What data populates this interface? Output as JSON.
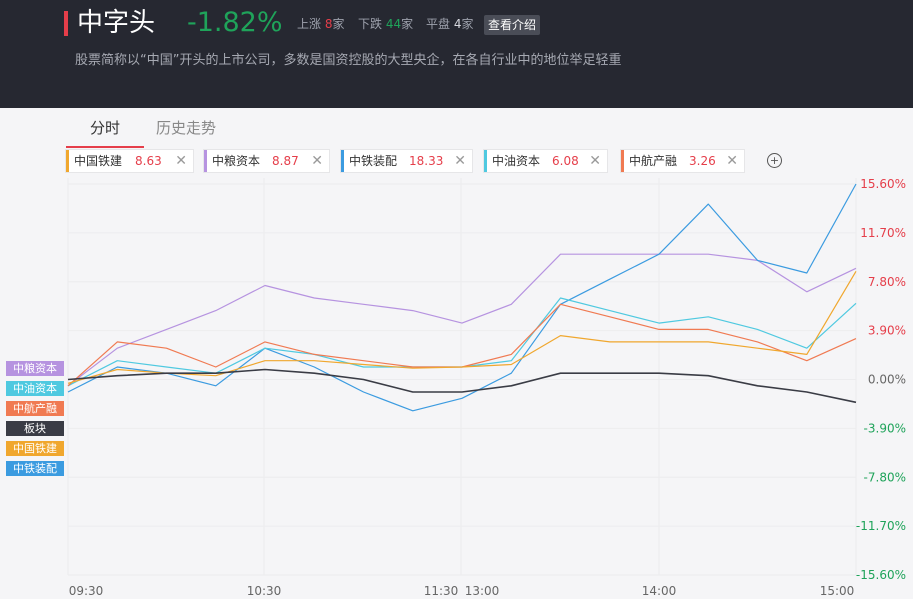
{
  "header": {
    "sector_name": "中字头",
    "sector_change": "-1.82%",
    "up_label": "上涨",
    "up_count": "8",
    "down_label": "下跌",
    "down_count": "44",
    "flat_label": "平盘",
    "flat_count": "4",
    "unit": "家",
    "intro_button": "查看介绍",
    "description": "股票简称以“中国”开头的上市公司，多数是国资控股的大型央企，在各自行业中的地位举足轻重"
  },
  "tabs": [
    {
      "label": "分时",
      "active": true
    },
    {
      "label": "历史走势",
      "active": false
    }
  ],
  "stock_chips": [
    {
      "name": "中国铁建",
      "value": "8.63",
      "color": "#f0a72e"
    },
    {
      "name": "中粮资本",
      "value": "8.87",
      "color": "#b693e0"
    },
    {
      "name": "中铁装配",
      "value": "18.33",
      "color": "#3b9be0"
    },
    {
      "name": "中油资本",
      "value": "6.08",
      "color": "#4fc9e0"
    },
    {
      "name": "中航产融",
      "value": "3.26",
      "color": "#f07a52"
    }
  ],
  "chip_close": "✕",
  "add_button": "+",
  "legend_tags": [
    {
      "label": "中粮资本",
      "color": "#b693e0"
    },
    {
      "label": "中油资本",
      "color": "#4fc9e0"
    },
    {
      "label": "中航产融",
      "color": "#f07a52"
    },
    {
      "label": "板块",
      "color": "#3a3c45"
    },
    {
      "label": "中国铁建",
      "color": "#f0a72e"
    },
    {
      "label": "中铁装配",
      "color": "#3b9be0"
    }
  ],
  "chart_data": {
    "type": "line",
    "x_ticks": [
      "09:30",
      "10:30",
      "11:30",
      "13:00",
      "14:00",
      "15:00"
    ],
    "y_ticks": [
      "15.60%",
      "11.70%",
      "7.80%",
      "3.90%",
      "0.00%",
      "-3.90%",
      "-7.80%",
      "-11.70%",
      "-15.60%"
    ],
    "ylim": [
      -15.6,
      15.6
    ],
    "x": [
      0,
      15,
      30,
      45,
      60,
      75,
      90,
      105,
      120,
      135,
      150,
      165,
      180,
      195,
      210,
      225,
      240
    ],
    "series": [
      {
        "name": "中粮资本",
        "color": "#b693e0",
        "values": [
          -0.5,
          2.5,
          4.0,
          5.5,
          7.5,
          6.5,
          6.0,
          5.5,
          4.5,
          6.0,
          10.0,
          10.0,
          10.0,
          10.0,
          9.5,
          7.0,
          8.87
        ]
      },
      {
        "name": "中铁装配",
        "color": "#3b9be0",
        "values": [
          -1.0,
          1.0,
          0.5,
          -0.5,
          2.5,
          1.0,
          -1.0,
          -2.5,
          -1.5,
          0.5,
          6.0,
          8.0,
          10.0,
          14.0,
          9.5,
          8.5,
          18.33
        ]
      },
      {
        "name": "中油资本",
        "color": "#4fc9e0",
        "values": [
          -0.5,
          1.5,
          1.0,
          0.5,
          2.5,
          2.0,
          1.0,
          1.0,
          1.0,
          1.5,
          6.5,
          5.5,
          4.5,
          5.0,
          4.0,
          2.5,
          6.08
        ]
      },
      {
        "name": "中航产融",
        "color": "#f07a52",
        "values": [
          -0.5,
          3.0,
          2.5,
          1.0,
          3.0,
          2.0,
          1.5,
          1.0,
          1.0,
          2.0,
          6.0,
          5.0,
          4.0,
          4.0,
          3.0,
          1.5,
          3.26
        ]
      },
      {
        "name": "中国铁建",
        "color": "#f0a72e",
        "values": [
          -0.3,
          0.8,
          0.5,
          0.3,
          1.5,
          1.5,
          1.2,
          0.9,
          1.0,
          1.2,
          3.5,
          3.0,
          3.0,
          3.0,
          2.5,
          2.0,
          8.63
        ]
      },
      {
        "name": "板块",
        "color": "#3a3c45",
        "values": [
          0.0,
          0.3,
          0.5,
          0.5,
          0.8,
          0.5,
          0.0,
          -1.0,
          -1.0,
          -0.5,
          0.5,
          0.5,
          0.5,
          0.3,
          -0.5,
          -1.0,
          -1.82
        ]
      }
    ]
  }
}
